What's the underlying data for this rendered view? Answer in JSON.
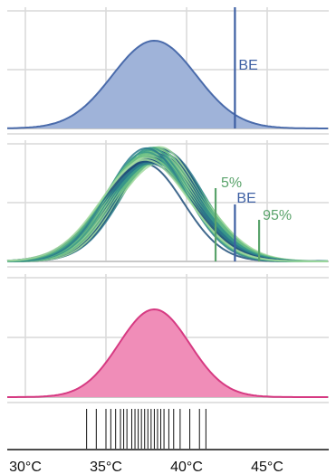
{
  "chart_data": {
    "type": "area",
    "x_ticks": [
      "30°C",
      "35°C",
      "40°C",
      "45°C"
    ],
    "x_tick_values": [
      30,
      35,
      40,
      45
    ],
    "xlim": [
      30,
      50.5
    ],
    "grid": true,
    "panels": [
      {
        "id": "estimate",
        "distribution": {
          "mean": 38.0,
          "sd": 2.6,
          "fill": "#9fb3d9",
          "line": "#4a6bab"
        },
        "markers": [
          {
            "label": "BE",
            "x": 43.0,
            "color": "#3d5fa3"
          }
        ]
      },
      {
        "id": "bootstrap",
        "ensemble": {
          "count": 40,
          "mean_range": [
            37.4,
            38.6
          ],
          "sd_range": [
            2.4,
            2.8
          ],
          "colors": [
            "#1f4e79",
            "#2a7a8c",
            "#3a9a8a",
            "#6cbf84",
            "#a3d9a0"
          ]
        },
        "markers": [
          {
            "label": "5%",
            "x": 41.8,
            "color": "#5aa36b"
          },
          {
            "label": "BE",
            "x": 43.0,
            "color": "#3d5fa3"
          },
          {
            "label": "95%",
            "x": 44.5,
            "color": "#5aa36b"
          }
        ]
      },
      {
        "id": "smoothed",
        "distribution": {
          "mean": 38.0,
          "sd": 2.2,
          "fill": "#f08db8",
          "line": "#d63a82"
        }
      }
    ],
    "rug": [
      33.8,
      34.4,
      35.0,
      35.3,
      35.6,
      35.9,
      36.1,
      36.3,
      36.6,
      36.8,
      37.0,
      37.2,
      37.4,
      37.6,
      37.8,
      38.0,
      38.2,
      38.4,
      38.6,
      38.9,
      39.2,
      39.6,
      40.2,
      40.8,
      41.2
    ]
  }
}
